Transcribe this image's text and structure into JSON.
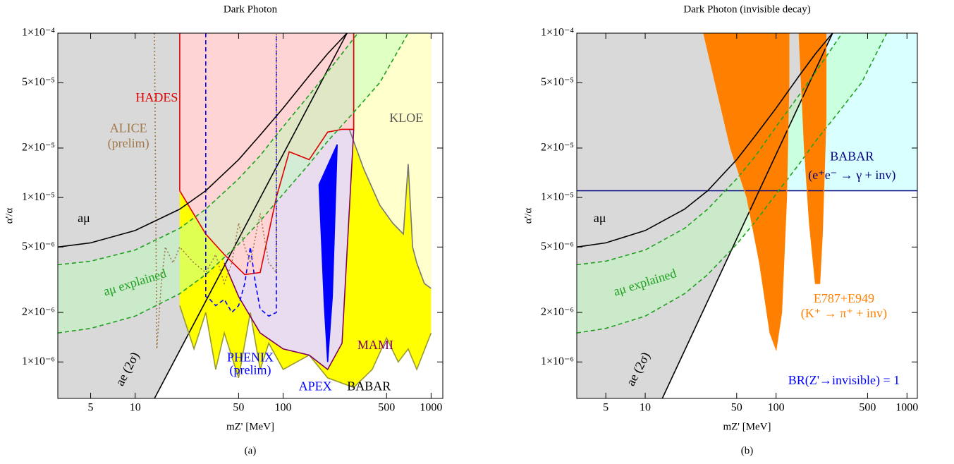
{
  "chart_data": [
    {
      "type": "line",
      "title": "Dark Photon",
      "xlabel": "mZ' [MeV]",
      "ylabel": "α'/α",
      "caption": "(a)",
      "xscale": "log",
      "yscale": "log",
      "grid": false,
      "xlim": [
        3,
        1200
      ],
      "ylim": [
        6e-07,
        0.0001
      ],
      "xticks": [
        5,
        10,
        50,
        100,
        500,
        1000
      ],
      "yticks": [
        {
          "value": 1e-06,
          "label": "1×10⁻⁶"
        },
        {
          "value": 2e-06,
          "label": "2×10⁻⁶"
        },
        {
          "value": 5e-06,
          "label": "5×10⁻⁶"
        },
        {
          "value": 1e-05,
          "label": "1×10⁻⁵"
        },
        {
          "value": 2e-05,
          "label": "2×10⁻⁵"
        },
        {
          "value": 5e-05,
          "label": "5×10⁻⁵"
        },
        {
          "value": 0.0001,
          "label": "1×10⁻⁴"
        }
      ],
      "series": [
        {
          "color": "#000000",
          "fill": "left",
          "fill_color": "#d9d9d9",
          "dash": "solid",
          "x": [
            13.5,
            270
          ],
          "values": [
            6e-07,
            0.0001
          ]
        },
        {
          "color": "#999933",
          "fill": "top",
          "fill_color": "#ffff00",
          "dash": "solid",
          "x": [
            20,
            25,
            30,
            35,
            40,
            50,
            60,
            70,
            80,
            100,
            150,
            200,
            300,
            400,
            500,
            600,
            700,
            800,
            1000
          ],
          "values": [
            2.2e-06,
            1.2e-06,
            2e-06,
            9e-07,
            1.5e-06,
            8e-07,
            2e-06,
            9e-07,
            1.3e-06,
            9e-07,
            1.1e-06,
            8e-07,
            7e-07,
            9e-07,
            1.4e-06,
            1e-06,
            1.2e-06,
            9e-07,
            1.5e-06
          ]
        },
        {
          "color": "#777777",
          "fill": "top",
          "fill_color": "#ffffcc",
          "dash": "solid",
          "x": [
            280,
            350,
            450,
            550,
            650,
            700,
            750,
            800,
            900,
            1000
          ],
          "values": [
            2.6e-05,
            1.5e-05,
            9e-06,
            7e-06,
            6e-06,
            1.6e-05,
            5e-06,
            4e-06,
            3e-06,
            2.8e-06
          ]
        },
        {
          "color": "#800060",
          "fill": "top",
          "fill_color": "#e8dcee",
          "dash": "solid",
          "x": [
            40,
            50,
            70,
            100,
            150,
            200,
            250,
            300,
            300
          ],
          "values": [
            4e-06,
            2.5e-06,
            1.5e-06,
            1.2e-06,
            1.1e-06,
            9e-07,
            1.3e-06,
            2.6e-05,
            0.0001
          ]
        },
        {
          "color": "#e00000",
          "fill": "top",
          "fill_color": "#ffd4d4",
          "dash": "solid",
          "x": [
            20,
            20,
            30,
            40,
            55,
            70,
            90,
            110,
            150,
            200,
            250,
            300,
            300
          ],
          "values": [
            0.0001,
            1.1e-05,
            6e-06,
            4.5e-06,
            3.4e-06,
            3.5e-06,
            1e-05,
            1.9e-05,
            1.7e-05,
            2.5e-05,
            2.6e-05,
            2.6e-05,
            0.0001
          ]
        },
        {
          "color": "#20a020",
          "fill": "between_next",
          "fill_color": "#b8ffb8",
          "fill_opacity": 0.45,
          "dash": "dashed",
          "x": [
            3,
            5,
            10,
            20,
            30,
            50,
            70,
            100,
            150,
            200,
            320
          ],
          "values": [
            3.9e-06,
            4.1e-06,
            4.8e-06,
            6.5e-06,
            8.5e-06,
            1.3e-05,
            1.8e-05,
            2.7e-05,
            4.2e-05,
            5.8e-05,
            0.0001
          ]
        },
        {
          "color": "#20a020",
          "fill": "none",
          "dash": "dashed",
          "x": [
            3,
            5,
            10,
            20,
            30,
            50,
            70,
            100,
            150,
            200,
            300,
            450,
            700
          ],
          "values": [
            1.5e-06,
            1.6e-06,
            1.9e-06,
            2.6e-06,
            3.4e-06,
            5.2e-06,
            7.2e-06,
            1.05e-05,
            1.6e-05,
            2.2e-05,
            3.3e-05,
            5e-05,
            0.0001
          ]
        },
        {
          "color": "#0000ff",
          "fill": "closed",
          "fill_color": "#0000ff",
          "dash": "solid",
          "x": [
            175,
            190,
            200,
            215,
            232,
            175
          ],
          "values": [
            1.2e-05,
            2.2e-06,
            1e-06,
            2.5e-06,
            2.1e-05,
            1.2e-05
          ]
        },
        {
          "color": "#0000ff",
          "fill": "none",
          "dash": "dashed",
          "x": [
            30,
            30,
            32,
            35,
            40,
            45,
            50,
            55,
            60,
            65,
            70,
            80,
            90,
            90
          ],
          "values": [
            0.0001,
            2.5e-06,
            2.4e-06,
            2.2e-06,
            2.4e-06,
            2e-06,
            2.2e-06,
            3e-06,
            5e-06,
            3e-06,
            2.1e-06,
            1.9e-06,
            2e-06,
            0.0001
          ]
        },
        {
          "color": "#a0784a",
          "fill": "none",
          "dash": "dotted",
          "x": [
            13.5,
            14,
            15,
            16,
            18,
            20,
            25,
            30,
            35,
            40,
            45,
            50,
            55,
            60,
            70,
            80,
            90,
            90
          ],
          "values": [
            0.0001,
            1.2e-06,
            3e-06,
            5e-06,
            4e-06,
            5e-06,
            4e-06,
            3.5e-06,
            4.5e-06,
            3e-06,
            4e-06,
            7e-06,
            5e-06,
            4e-06,
            8e-06,
            4e-06,
            3.5e-06,
            0.0001
          ]
        },
        {
          "color": "#000000",
          "fill": "none",
          "dash": "solid",
          "x": [
            3,
            5,
            10,
            20,
            30,
            50,
            70,
            100,
            150,
            200,
            270
          ],
          "values": [
            5e-06,
            5.3e-06,
            6.3e-06,
            8.5e-06,
            1.1e-05,
            1.7e-05,
            2.4e-05,
            3.5e-05,
            5.5e-05,
            7.5e-05,
            0.0001
          ]
        }
      ],
      "annotations": [
        {
          "text": "HADES",
          "color": "#e00000",
          "x": 14,
          "y": 4e-05
        },
        {
          "text": "ALICE",
          "color": "#a0784a",
          "x": 9,
          "y": 2.6e-05
        },
        {
          "text": "(prelim)",
          "color": "#a0784a",
          "x": 9,
          "y": 2.1e-05
        },
        {
          "text": "KLOE",
          "color": "#555555",
          "x": 680,
          "y": 3e-05
        },
        {
          "text": "MAMI",
          "color": "#800060",
          "x": 420,
          "y": 1.25e-06
        },
        {
          "text": "PHENIX",
          "color": "#0000ff",
          "x": 60,
          "y": 1.05e-06
        },
        {
          "text": "(prelim)",
          "color": "#0000ff",
          "x": 60,
          "y": 8.8e-07
        },
        {
          "text": "APEX",
          "color": "#0000ff",
          "x": 165,
          "y": 7e-07
        },
        {
          "text": "BABAR",
          "color": "#000000",
          "x": 380,
          "y": 7e-07
        },
        {
          "text": "aμ",
          "color": "#000000",
          "x": 4.5,
          "y": 7.4e-06
        },
        {
          "text": "aμ  explained",
          "color": "#20a020",
          "x": 10,
          "y": 3e-06
        },
        {
          "text": "ae (2σ)",
          "color": "#000000",
          "x": 9,
          "y": 9e-07
        }
      ]
    },
    {
      "type": "line",
      "title": "Dark Photon (invisible decay)",
      "xlabel": "mZ' [MeV]",
      "ylabel": "α'/α",
      "caption": "(b)",
      "xscale": "log",
      "yscale": "log",
      "grid": false,
      "xlim": [
        3,
        1200
      ],
      "ylim": [
        6e-07,
        0.0001
      ],
      "xticks": [
        5,
        10,
        50,
        100,
        500,
        1000
      ],
      "yticks": [
        {
          "value": 1e-06,
          "label": "1×10⁻⁶"
        },
        {
          "value": 2e-06,
          "label": "2×10⁻⁶"
        },
        {
          "value": 5e-06,
          "label": "5×10⁻⁶"
        },
        {
          "value": 1e-05,
          "label": "1×10⁻⁵"
        },
        {
          "value": 2e-05,
          "label": "2×10⁻⁵"
        },
        {
          "value": 5e-05,
          "label": "5×10⁻⁵"
        },
        {
          "value": 0.0001,
          "label": "1×10⁻⁴"
        }
      ],
      "series": [
        {
          "color": "#000080",
          "fill": "top",
          "fill_color": "#d9ffff",
          "dash": "solid",
          "x": [
            3,
            1200
          ],
          "values": [
            1.1e-05,
            1.1e-05
          ]
        },
        {
          "color": "#000000",
          "fill": "left",
          "fill_color": "#d9d9d9",
          "dash": "solid",
          "x": [
            13.5,
            270
          ],
          "values": [
            6e-07,
            0.0001
          ]
        },
        {
          "color": "#20a020",
          "fill": "between_next",
          "fill_color": "#b8ffb8",
          "fill_opacity": 0.45,
          "dash": "dashed",
          "x": [
            3,
            5,
            10,
            20,
            30,
            50,
            70,
            100,
            150,
            200,
            320
          ],
          "values": [
            3.9e-06,
            4.1e-06,
            4.8e-06,
            6.5e-06,
            8.5e-06,
            1.3e-05,
            1.8e-05,
            2.7e-05,
            4.2e-05,
            5.8e-05,
            0.0001
          ]
        },
        {
          "color": "#20a020",
          "fill": "none",
          "dash": "dashed",
          "x": [
            3,
            5,
            10,
            20,
            30,
            50,
            70,
            100,
            150,
            200,
            300,
            450,
            700
          ],
          "values": [
            1.5e-06,
            1.6e-06,
            1.9e-06,
            2.6e-06,
            3.4e-06,
            5.2e-06,
            7.2e-06,
            1.05e-05,
            1.6e-05,
            2.2e-05,
            3.3e-05,
            5e-05,
            0.0001
          ]
        },
        {
          "color": "#ff8000",
          "fill": "closed",
          "fill_color": "#ff8000",
          "dash": "solid",
          "x": [
            28,
            45,
            60,
            75,
            90,
            100,
            110,
            120,
            125,
            125,
            28
          ],
          "values": [
            0.0001,
            2e-05,
            1e-05,
            4e-06,
            1.5e-06,
            1.2e-06,
            2e-06,
            1e-05,
            5e-05,
            0.0001,
            0.0001
          ]
        },
        {
          "color": "#ff8000",
          "fill": "closed",
          "fill_color": "#ff8000",
          "dash": "solid",
          "x": [
            150,
            165,
            180,
            200,
            215,
            225,
            240,
            240,
            150
          ],
          "values": [
            0.0001,
            2e-05,
            7e-06,
            3e-06,
            3e-06,
            6e-06,
            3e-05,
            0.0001,
            0.0001
          ]
        },
        {
          "color": "#000000",
          "fill": "none",
          "dash": "solid",
          "x": [
            3,
            5,
            10,
            20,
            30,
            50,
            70,
            100,
            150,
            200,
            270
          ],
          "values": [
            5e-06,
            5.3e-06,
            6.3e-06,
            8.5e-06,
            1.1e-05,
            1.7e-05,
            2.4e-05,
            3.5e-05,
            5.5e-05,
            7.5e-05,
            0.0001
          ]
        }
      ],
      "annotations": [
        {
          "text": "BABAR",
          "color": "#000080",
          "x": 380,
          "y": 1.75e-05
        },
        {
          "text": "(e⁺e⁻ → γ + inv)",
          "color": "#000080",
          "x": 380,
          "y": 1.35e-05
        },
        {
          "text": "E787+E949",
          "color": "#ff8000",
          "x": 330,
          "y": 2.4e-06
        },
        {
          "text": "(K⁺ → π⁺ + inv)",
          "color": "#ff8000",
          "x": 330,
          "y": 1.95e-06
        },
        {
          "text": "BR(Z'→invisible) = 1",
          "color": "#0000ff",
          "x": 330,
          "y": 7.6e-07
        },
        {
          "text": "aμ",
          "color": "#000000",
          "x": 4.5,
          "y": 7.4e-06
        },
        {
          "text": "aμ  explained",
          "color": "#20a020",
          "x": 10,
          "y": 3e-06
        },
        {
          "text": "ae (2σ)",
          "color": "#000000",
          "x": 9,
          "y": 9e-07
        }
      ]
    }
  ]
}
